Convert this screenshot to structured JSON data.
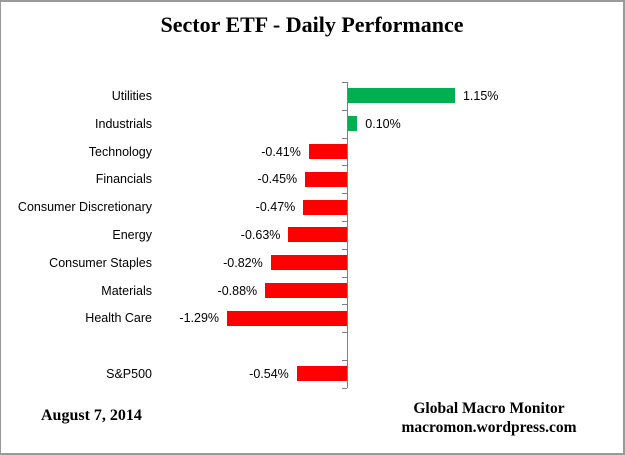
{
  "title": "Sector ETF - Daily Performance",
  "colors": {
    "positive": "#00B050",
    "negative": "#FF0000",
    "axis": "#808080",
    "text": "#000000",
    "page_border": "#9A9A9A"
  },
  "chart_data": {
    "type": "bar",
    "orientation": "horizontal",
    "title": "Sector ETF - Daily Performance",
    "xlabel": "",
    "ylabel": "",
    "grid": false,
    "legend": false,
    "value_axis_visible": false,
    "value_unit": "percent",
    "categories": [
      "Utilities",
      "Industrials",
      "Technology",
      "Financials",
      "Consumer Discretionary",
      "Energy",
      "Consumer Staples",
      "Materials",
      "Health Care",
      "",
      "S&P500"
    ],
    "values": [
      1.15,
      0.1,
      -0.41,
      -0.45,
      -0.47,
      -0.63,
      -0.82,
      -0.88,
      -1.29,
      null,
      -0.54
    ],
    "data_labels": [
      "1.15%",
      "0.10%",
      "-0.41%",
      "-0.45%",
      "-0.47%",
      "-0.63%",
      "-0.82%",
      "-0.88%",
      "-1.29%",
      "",
      "-0.54%"
    ]
  },
  "footer": {
    "date": "August 7, 2014",
    "source_line1": "Global Macro Monitor",
    "source_line2": "macromon.wordpress.com"
  }
}
